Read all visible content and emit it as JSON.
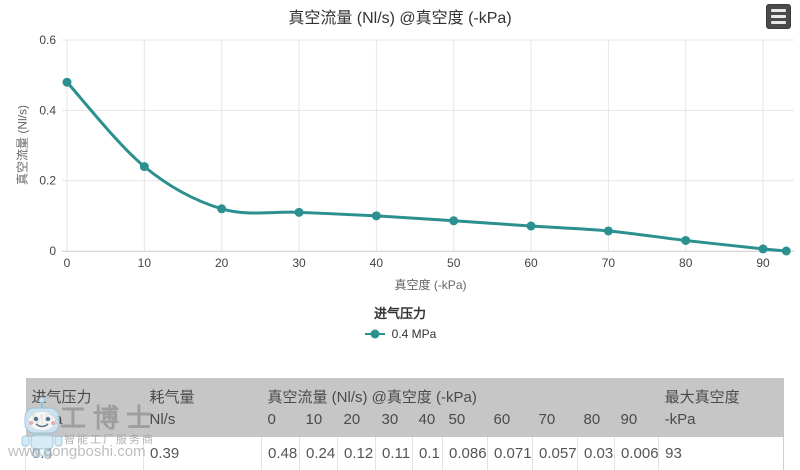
{
  "chart": {
    "title": "真空流量 (Nl/s) @真空度 (-kPa)",
    "menu_icon": "hamburger-menu",
    "legend": {
      "title": "进气压力"
    }
  },
  "chart_data": {
    "type": "line",
    "title": "真空流量 (Nl/s) @真空度 (-kPa)",
    "xlabel": "真空度 (-kPa)",
    "ylabel": "真空流量 (Nl/s)",
    "xlim": [
      0,
      94
    ],
    "ylim": [
      0,
      0.6
    ],
    "x_ticks": [
      0,
      10,
      20,
      30,
      40,
      50,
      60,
      70,
      80,
      90
    ],
    "y_ticks": [
      0,
      0.2,
      0.4,
      0.6
    ],
    "grid": true,
    "grid_color": "#e6e6e6",
    "axis_line_color": "#d8d8d8",
    "tick_label_color": "#444444",
    "legend_position": "bottom-center",
    "legend_title": "进气压力",
    "series": [
      {
        "name": "0.4 MPa",
        "color": "#2b908f",
        "marker": "circle",
        "x": [
          0,
          10,
          20,
          30,
          40,
          50,
          60,
          70,
          80,
          90,
          93
        ],
        "y": [
          0.48,
          0.24,
          0.12,
          0.11,
          0.1,
          0.086,
          0.071,
          0.057,
          0.03,
          0.006,
          0
        ]
      }
    ]
  },
  "table": {
    "headers": {
      "pressure": "进气压力",
      "pressure_unit": "MPa",
      "consumption": "耗气量",
      "consumption_unit": "Nl/s",
      "flow_group": "真空流量 (Nl/s) @真空度 (-kPa)",
      "kpa_ticks": [
        "0",
        "10",
        "20",
        "30",
        "40",
        "50",
        "60",
        "70",
        "80",
        "90"
      ],
      "max_vacuum": "最大真空度",
      "max_vacuum_unit": "-kPa"
    },
    "row": {
      "pressure": "0.4",
      "consumption": "0.39",
      "flows": [
        "0.48",
        "0.24",
        "0.12",
        "0.11",
        "0.1",
        "0.086",
        "0.071",
        "0.057",
        "0.03",
        "0.006"
      ],
      "max_vacuum": "93"
    }
  },
  "watermark": {
    "brand": "工博士",
    "tagline": "智能工厂服务商",
    "url": "www.gongboshi.com"
  }
}
